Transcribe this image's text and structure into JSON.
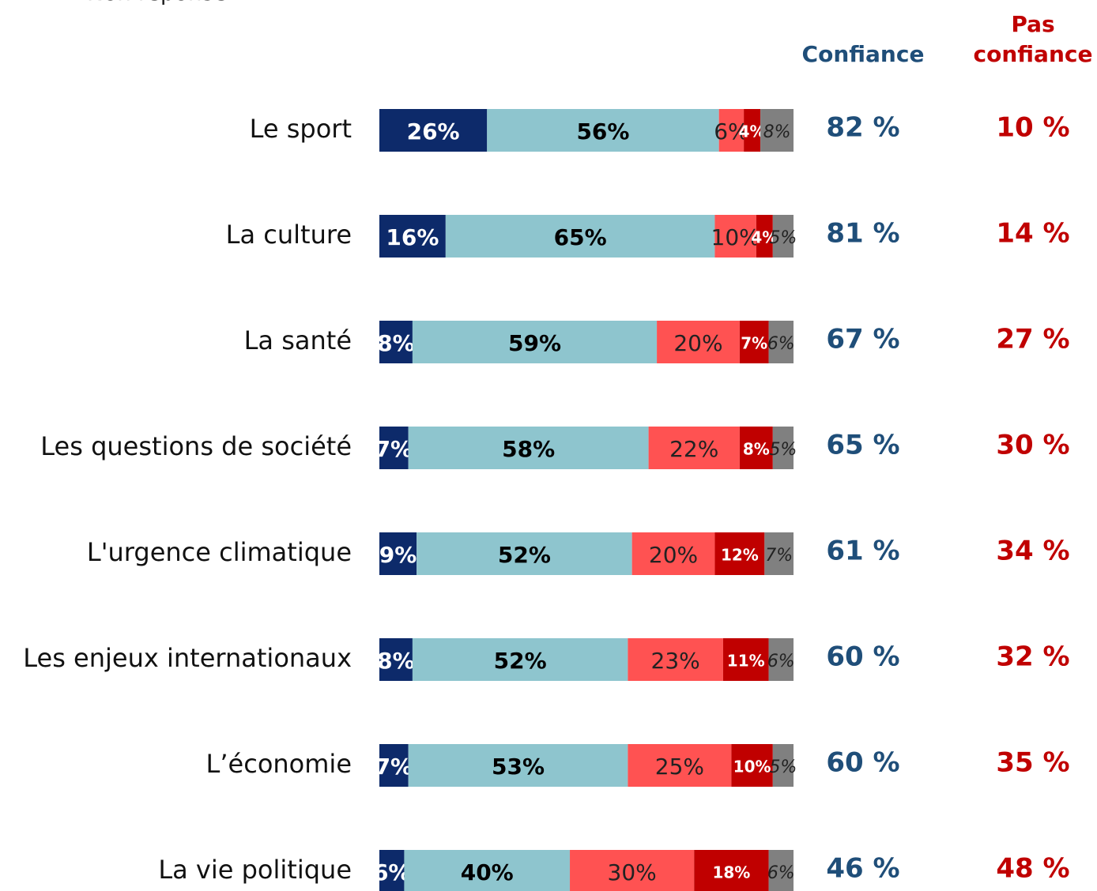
{
  "chart_data": {
    "type": "stacked-bar",
    "categories": [
      "Le sport",
      "La culture",
      "La santé",
      "Les questions de société",
      "L'urgence climatique",
      "Les enjeux internationaux",
      "L’économie",
      "La vie politique"
    ],
    "series": [
      {
        "color": "#0d2a6a",
        "values": [
          26,
          16,
          8,
          7,
          9,
          8,
          7,
          6
        ],
        "value_labels": [
          "26%",
          "16%",
          "8%",
          "7%",
          "9%",
          "8%",
          "7%",
          "6%"
        ]
      },
      {
        "color": "#8ec5ce",
        "values": [
          56,
          65,
          59,
          58,
          52,
          52,
          53,
          40
        ],
        "value_labels": [
          "56%",
          "65%",
          "59%",
          "58%",
          "52%",
          "52%",
          "53%",
          "40%"
        ]
      },
      {
        "color": "#ff5252",
        "values": [
          6,
          10,
          20,
          22,
          20,
          23,
          25,
          30
        ],
        "value_labels": [
          "6%",
          "10%",
          "20%",
          "22%",
          "20%",
          "23%",
          "25%",
          "30%"
        ]
      },
      {
        "color": "#c00000",
        "values": [
          4,
          4,
          7,
          8,
          12,
          11,
          10,
          18
        ],
        "value_labels": [
          "4%",
          "4%",
          "7%",
          "8%",
          "12%",
          "11%",
          "10%",
          "18%"
        ]
      },
      {
        "name": "Non réponse",
        "color": "#808080",
        "values": [
          8,
          5,
          6,
          5,
          7,
          6,
          5,
          6
        ],
        "value_labels": [
          "8%",
          "5%",
          "6%",
          "5%",
          "7%",
          "6%",
          "5%",
          "6%"
        ]
      }
    ],
    "xlim": [
      0,
      100
    ],
    "totals": [
      {
        "title": "Confiance",
        "color": "#1f4e79",
        "values": [
          82,
          81,
          67,
          65,
          61,
          60,
          60,
          46
        ],
        "value_labels": [
          "82 %",
          "81 %",
          "67 %",
          "65 %",
          "61 %",
          "60 %",
          "60 %",
          "46 %"
        ]
      },
      {
        "title": "Pas confiance",
        "color": "#c00000",
        "values": [
          10,
          14,
          27,
          30,
          34,
          32,
          35,
          48
        ],
        "value_labels": [
          "10 %",
          "14 %",
          "27 %",
          "30 %",
          "34 %",
          "32 %",
          "35 %",
          "48 %"
        ]
      }
    ]
  }
}
